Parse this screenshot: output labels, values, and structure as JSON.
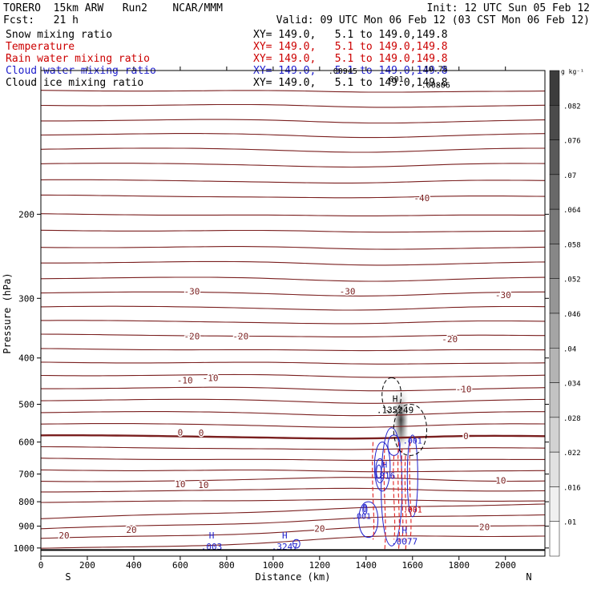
{
  "header": {
    "model": "TORERO  15km ARW   Run2    NCAR/MMM",
    "init": "Init: 12 UTC Sun 05 Feb 12",
    "fcst": "Fcst:   21 h",
    "valid": "Valid: 09 UTC Mon 06 Feb 12 (03 CST Mon 06 Feb 12)"
  },
  "fields": [
    {
      "name": "Snow mixing ratio",
      "xy": "XY= 149.0,   5.1 to 149.0,149.8",
      "color": "#000000"
    },
    {
      "name": "Temperature",
      "xy": "XY= 149.0,   5.1 to 149.0,149.8",
      "color": "#cc0000"
    },
    {
      "name": "Rain water mixing ratio",
      "xy": "XY= 149.0,   5.1 to 149.0,149.8",
      "color": "#cc0000"
    },
    {
      "name": "Cloud water mixing ratio",
      "xy": "XY= 149.0,   5.1 to 149.0,149.8",
      "color": "#2020cc"
    },
    {
      "name": "Cloud ice mixing ratio",
      "xy": "XY= 149.0,   5.1 to 149.0,149.8",
      "color": "#000000"
    }
  ],
  "colors": {
    "temperature": "#7a1f1f",
    "rain": "#e02020",
    "cloud_water": "#2020cc",
    "snow": "#000000"
  },
  "chart_data": {
    "type": "contour-cross-section",
    "xlabel": "Distance (km)",
    "ylabel": "Pressure (hPa)",
    "xlim": [
      0,
      2170
    ],
    "ylim": [
      1040,
      100
    ],
    "y_scale": "log",
    "x_ticks": [
      0,
      200,
      400,
      600,
      800,
      1000,
      1200,
      1400,
      1600,
      1800,
      2000
    ],
    "y_ticks": [
      200,
      300,
      400,
      500,
      600,
      700,
      800,
      900,
      1000
    ],
    "end_labels": {
      "left": "S",
      "right": "N"
    },
    "colorbar": {
      "unit": "g kg⁻¹",
      "levels": [
        ".082",
        ".076",
        ".07",
        ".064",
        ".058",
        ".052",
        ".046",
        ".04",
        ".034",
        ".028",
        ".022",
        ".016",
        ".01"
      ]
    },
    "temperature_labels": [
      {
        "x": 1640,
        "p": 185,
        "text": "-40"
      },
      {
        "x": 650,
        "p": 290,
        "text": "-30"
      },
      {
        "x": 1320,
        "p": 290,
        "text": "-30"
      },
      {
        "x": 1990,
        "p": 295,
        "text": "-30"
      },
      {
        "x": 650,
        "p": 360,
        "text": "-20"
      },
      {
        "x": 860,
        "p": 360,
        "text": "-20"
      },
      {
        "x": 1760,
        "p": 365,
        "text": "-20"
      },
      {
        "x": 620,
        "p": 445,
        "text": "-10"
      },
      {
        "x": 730,
        "p": 440,
        "text": "-10"
      },
      {
        "x": 1820,
        "p": 465,
        "text": "-10"
      },
      {
        "x": 600,
        "p": 572,
        "text": "0"
      },
      {
        "x": 690,
        "p": 574,
        "text": "0"
      },
      {
        "x": 1830,
        "p": 583,
        "text": "0"
      },
      {
        "x": 600,
        "p": 735,
        "text": "10"
      },
      {
        "x": 700,
        "p": 738,
        "text": "10"
      },
      {
        "x": 1980,
        "p": 722,
        "text": "10"
      },
      {
        "x": 390,
        "p": 915,
        "text": "20"
      },
      {
        "x": 1200,
        "p": 910,
        "text": "20"
      },
      {
        "x": 1910,
        "p": 904,
        "text": "20"
      },
      {
        "x": 100,
        "p": 940,
        "text": "20"
      }
    ],
    "maxima_labels": [
      {
        "x": 735,
        "p": 985,
        "letter": "H",
        "value": ".003",
        "color": "#2020cc"
      },
      {
        "x": 1050,
        "p": 985,
        "letter": "H",
        "value": ".3247",
        "color": "#2020cc"
      },
      {
        "x": 1525,
        "p": 510,
        "letter": "H",
        "value": ".135249",
        "color": "#000000"
      },
      {
        "x": 1480,
        "p": 700,
        "letter": "H",
        "value": ".816",
        "color": "#2020cc"
      },
      {
        "x": 1565,
        "p": 960,
        "letter": "H",
        "value": ".0077",
        "color": "#2020cc"
      }
    ],
    "contour_value_labels": [
      {
        "x": 1380,
        "p": 855,
        "text": ".001",
        "color": "#2020cc"
      },
      {
        "x": 1600,
        "p": 595,
        "text": ".001",
        "color": "#2020cc"
      },
      {
        "x": 1600,
        "p": 830,
        "text": ".001",
        "color": "#cc0000"
      },
      {
        "x": 1300,
        "p": 100,
        "text": ".00945",
        "color": "#000000"
      },
      {
        "x": 1520,
        "p": 104,
        "text": ".001",
        "color": "#000000"
      },
      {
        "x": 1700,
        "p": 99,
        "text": "10.75",
        "color": "#000000"
      },
      {
        "x": 1700,
        "p": 107,
        "text": ".00806",
        "color": "#000000"
      }
    ]
  }
}
